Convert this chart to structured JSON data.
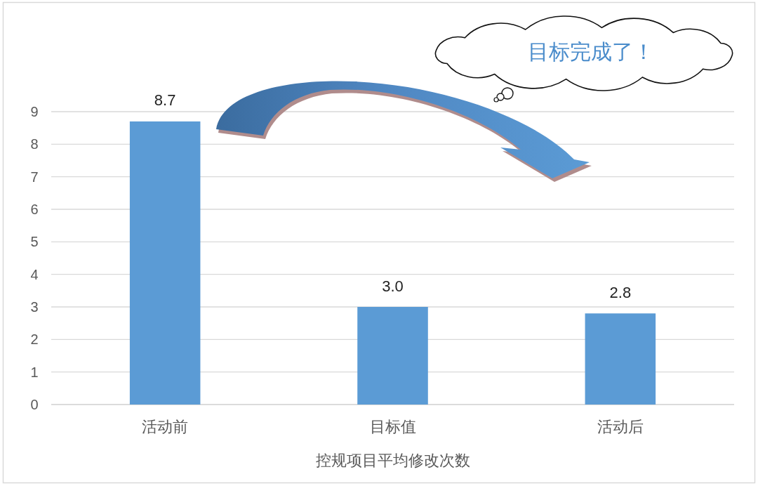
{
  "chart_data": {
    "type": "bar",
    "categories": [
      "活动前",
      "目标值",
      "活动后"
    ],
    "values": [
      8.7,
      3.0,
      2.8
    ],
    "value_labels": [
      "8.7",
      "3.0",
      "2.8"
    ],
    "color": "#5b9bd5",
    "xlabel": "控规项目平均修改次数",
    "ylim": [
      0,
      9
    ],
    "yticks": [
      0,
      1,
      2,
      3,
      4,
      5,
      6,
      7,
      8,
      9
    ],
    "grid": "y",
    "annotations": [
      "目标完成了！"
    ]
  }
}
